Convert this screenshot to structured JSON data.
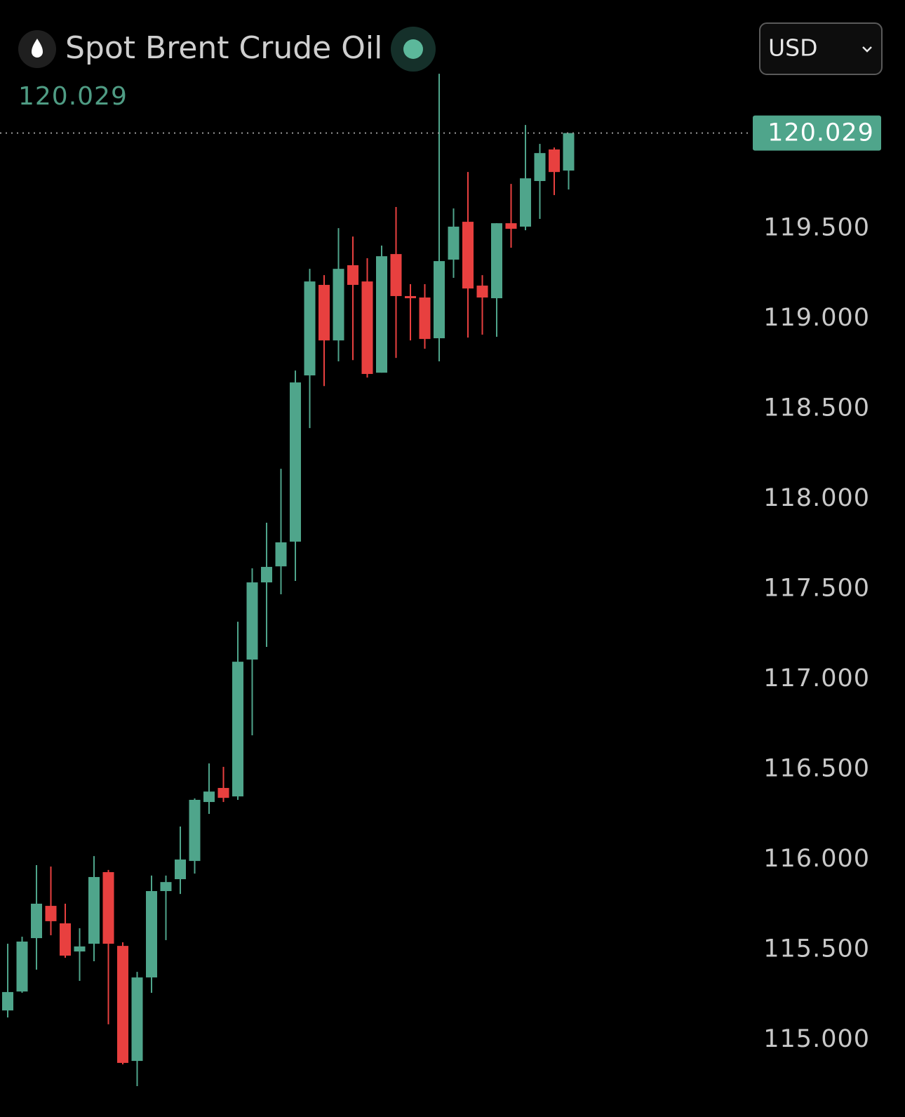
{
  "chart_data": {
    "type": "candlestick",
    "title": "Spot Brent Crude Oil",
    "currency": "USD",
    "last_price": 120.029,
    "up_color": "#4fa58b",
    "down_color": "#e8403f",
    "ylim": [
      114.572,
      120.767
    ],
    "yticks": [
      {
        "value": 115,
        "label": "115.000"
      },
      {
        "value": 115.5,
        "label": "115.500"
      },
      {
        "value": 116,
        "label": "116.000"
      },
      {
        "value": 116.5,
        "label": "116.500"
      },
      {
        "value": 117,
        "label": "117.000"
      },
      {
        "value": 117.5,
        "label": "117.500"
      },
      {
        "value": 118,
        "label": "118.000"
      },
      {
        "value": 118.5,
        "label": "118.500"
      },
      {
        "value": 119,
        "label": "119.000"
      },
      {
        "value": 119.5,
        "label": "119.500"
      }
    ],
    "open": [
      115.163,
      115.268,
      115.564,
      115.743,
      115.646,
      115.49,
      115.533,
      115.93,
      115.521,
      114.883,
      115.346,
      115.825,
      115.891,
      115.992,
      116.319,
      116.397,
      116.35,
      117.109,
      117.537,
      117.626,
      117.763,
      118.685,
      119.187,
      118.879,
      119.296,
      119.206,
      118.7,
      119.358,
      119.125,
      119.117,
      118.891,
      119.327,
      119.537,
      119.183,
      119.113,
      119.529,
      119.51,
      119.763,
      119.938,
      119.821
    ],
    "high": [
      115.533,
      115.572,
      115.969,
      115.961,
      115.755,
      115.619,
      116.019,
      115.942,
      115.541,
      115.377,
      115.911,
      115.911,
      116.183,
      116.339,
      116.533,
      116.514,
      117.319,
      117.615,
      117.868,
      118.167,
      118.712,
      119.276,
      119.241,
      119.502,
      119.455,
      119.335,
      119.405,
      119.619,
      119.191,
      119.191,
      120.358,
      119.611,
      119.813,
      119.241,
      119.529,
      119.747,
      120.074,
      119.969,
      119.949,
      120.029
    ],
    "low": [
      115.124,
      115.261,
      115.389,
      115.58,
      115.455,
      115.327,
      115.436,
      115.086,
      114.864,
      114.743,
      115.261,
      115.553,
      115.809,
      115.922,
      116.253,
      116.319,
      116.331,
      116.689,
      117.179,
      117.471,
      117.545,
      118.393,
      118.626,
      118.763,
      118.77,
      118.673,
      118.7,
      118.782,
      118.879,
      118.833,
      118.763,
      119.226,
      118.895,
      118.911,
      118.899,
      119.393,
      119.49,
      119.553,
      119.685,
      119.716
    ],
    "close": [
      115.265,
      115.545,
      115.755,
      115.658,
      115.467,
      115.518,
      115.903,
      115.533,
      114.872,
      115.346,
      115.825,
      115.875,
      116.0,
      116.331,
      116.377,
      116.342,
      117.097,
      117.537,
      117.623,
      117.759,
      118.646,
      119.206,
      118.879,
      119.276,
      119.187,
      118.693,
      119.346,
      119.125,
      119.113,
      118.887,
      119.319,
      119.51,
      119.167,
      119.117,
      119.529,
      119.498,
      119.778,
      119.918,
      119.813,
      120.029
    ]
  }
}
